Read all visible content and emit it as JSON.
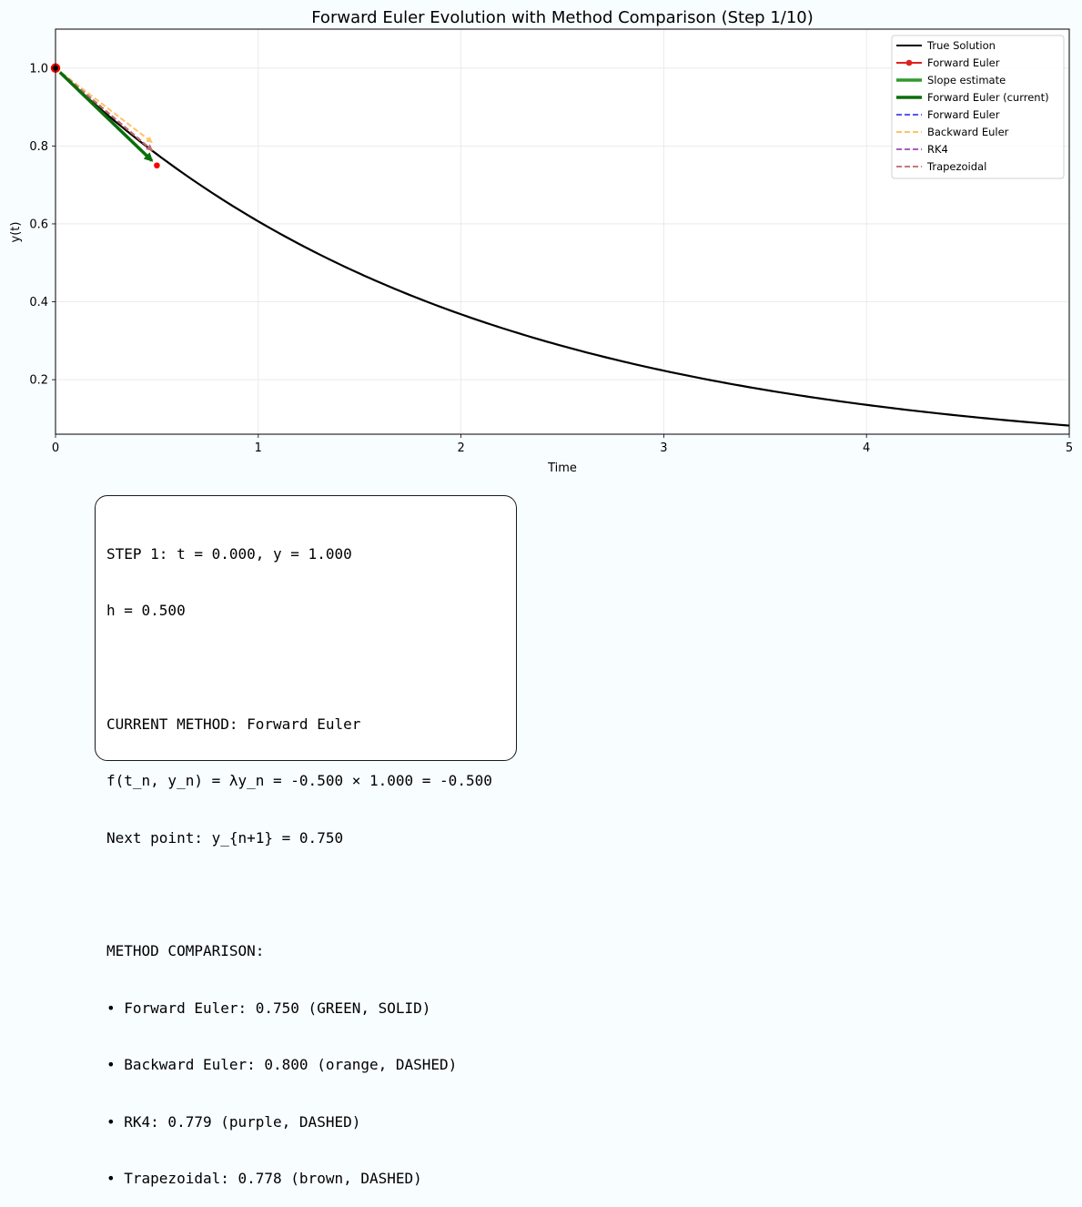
{
  "chart_data": {
    "type": "line",
    "title": "Forward Euler Evolution with Method Comparison (Step 1/10)",
    "xlabel": "Time",
    "ylabel": "y(t)",
    "xlim": [
      0,
      5
    ],
    "ylim": [
      0.06,
      1.1
    ],
    "xticks": [
      "0",
      "1",
      "2",
      "3",
      "4",
      "5"
    ],
    "xtick_values": [
      0,
      1,
      2,
      3,
      4,
      5
    ],
    "yticks": [
      "0.2",
      "0.4",
      "0.6",
      "0.8",
      "1.0"
    ],
    "ytick_values": [
      0.2,
      0.4,
      0.6,
      0.8,
      1.0
    ],
    "grid": true,
    "legend_position": "top-right",
    "true_solution": {
      "name": "True Solution",
      "function": "exp(-0.5*t)",
      "t_range": [
        0,
        5
      ],
      "color": "#000000"
    },
    "series": [
      {
        "name": "Forward Euler",
        "x": [
          0,
          0.5
        ],
        "y": [
          1.0,
          0.75
        ],
        "color": "#ff0000",
        "style": "points"
      },
      {
        "name": "Slope estimate",
        "x": [
          0,
          0.475
        ],
        "y": [
          1.0,
          0.7625
        ],
        "color": "#2a8a2a",
        "style": "solid"
      },
      {
        "name": "Forward Euler (current)",
        "x": [
          0,
          0.475
        ],
        "y": [
          1.0,
          0.7625
        ],
        "color": "#0a6e0a",
        "style": "arrow"
      },
      {
        "name": "Forward Euler",
        "x": [
          0,
          0.475
        ],
        "y": [
          1.0,
          0.7625
        ],
        "color": "#5050ee",
        "style": "dashed"
      },
      {
        "name": "Backward Euler",
        "x": [
          0,
          0.475
        ],
        "y": [
          1.0,
          0.81
        ],
        "color": "#ffc266",
        "style": "dashed"
      },
      {
        "name": "RK4",
        "x": [
          0,
          0.475
        ],
        "y": [
          1.0,
          0.79
        ],
        "color": "#a050b0",
        "style": "dashed"
      },
      {
        "name": "Trapezoidal",
        "x": [
          0,
          0.475
        ],
        "y": [
          1.0,
          0.789
        ],
        "color": "#c46a6a",
        "style": "dashed"
      }
    ],
    "current_point": {
      "x": 0,
      "y": 1.0
    },
    "legend": [
      {
        "label": "True Solution",
        "color": "#000000",
        "kind": "solid"
      },
      {
        "label": "Forward Euler",
        "color": "#e02020",
        "kind": "marker"
      },
      {
        "label": "Slope estimate",
        "color": "#2e9a2e",
        "kind": "thick"
      },
      {
        "label": "Forward Euler (current)",
        "color": "#0a6e0a",
        "kind": "thick"
      },
      {
        "label": "Forward Euler",
        "color": "#5858e8",
        "kind": "dashed"
      },
      {
        "label": "Backward Euler",
        "color": "#ffc266",
        "kind": "dashed"
      },
      {
        "label": "RK4",
        "color": "#a860b8",
        "kind": "dashed"
      },
      {
        "label": "Trapezoidal",
        "color": "#c87878",
        "kind": "dashed"
      }
    ]
  },
  "info_box": {
    "lines": [
      "STEP 1: t = 0.000, y = 1.000",
      "h = 0.500",
      "",
      "CURRENT METHOD: Forward Euler",
      "f(t_n, y_n) = λy_n = -0.500 × 1.000 = -0.500",
      "Next point: y_{n+1} = 0.750",
      "",
      "METHOD COMPARISON:",
      "• Forward Euler: 0.750 (GREEN, SOLID)",
      "• Backward Euler: 0.800 (orange, DASHED)",
      "• RK4: 0.779 (purple, DASHED)",
      "• Trapezoidal: 0.778 (brown, DASHED)"
    ]
  }
}
